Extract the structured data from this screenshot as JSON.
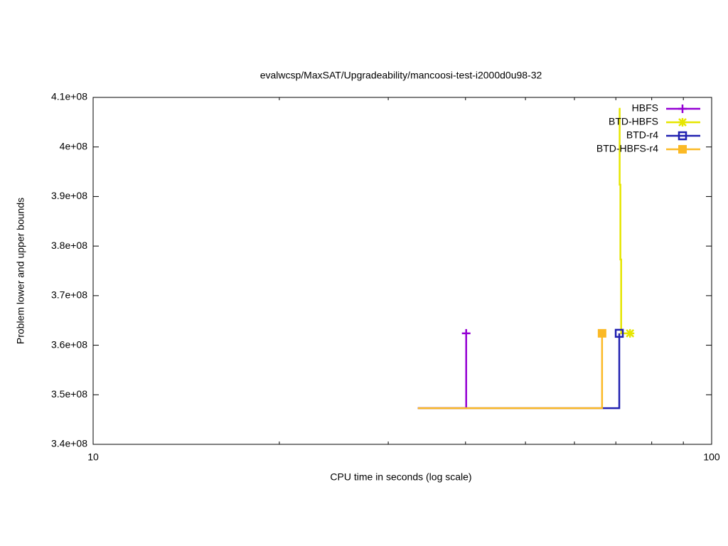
{
  "chart_data": {
    "type": "step",
    "title": "evalwcsp/MaxSAT/Upgradeability/mancoosi-test-i2000d0u98-32",
    "xlabel": "CPU time in seconds (log scale)",
    "ylabel": "Problem lower and upper bounds",
    "xlog": true,
    "xlim": [
      10,
      100
    ],
    "xticks": [
      10,
      100
    ],
    "xminorticks": [
      20,
      30,
      40,
      50,
      60,
      70,
      80,
      90
    ],
    "ylim": [
      340000000,
      410000000
    ],
    "yticks": [
      {
        "value": 340000000,
        "label": "3.4e+08"
      },
      {
        "value": 350000000,
        "label": "3.5e+08"
      },
      {
        "value": 360000000,
        "label": "3.6e+08"
      },
      {
        "value": 370000000,
        "label": "3.7e+08"
      },
      {
        "value": 380000000,
        "label": "3.8e+08"
      },
      {
        "value": 390000000,
        "label": "3.9e+08"
      },
      {
        "value": 400000000,
        "label": "4e+08"
      },
      {
        "value": 410000000,
        "label": "4.1e+08"
      }
    ],
    "legend": "top-right",
    "series": [
      {
        "name": "HBFS",
        "color": "#9400d3",
        "point": "plus",
        "x": [
          33.5,
          40.1
        ],
        "values": [
          347300000,
          362400000
        ]
      },
      {
        "name": "BTD-HBFS",
        "color": "#e6e600",
        "point": "star",
        "x": [
          70.8,
          71.0,
          71.2,
          71.4,
          73.8
        ],
        "values": [
          407700000,
          392400000,
          377300000,
          362400000,
          362400000
        ]
      },
      {
        "name": "BTD-r4",
        "color": "#2020b0",
        "point": "box",
        "x": [
          33.5,
          70.9
        ],
        "values": [
          347300000,
          362400000
        ]
      },
      {
        "name": "BTD-HBFS-r4",
        "color": "#fbb925",
        "point": "filledbox",
        "x": [
          33.5,
          66.5
        ],
        "values": [
          347300000,
          362400000
        ]
      }
    ]
  }
}
